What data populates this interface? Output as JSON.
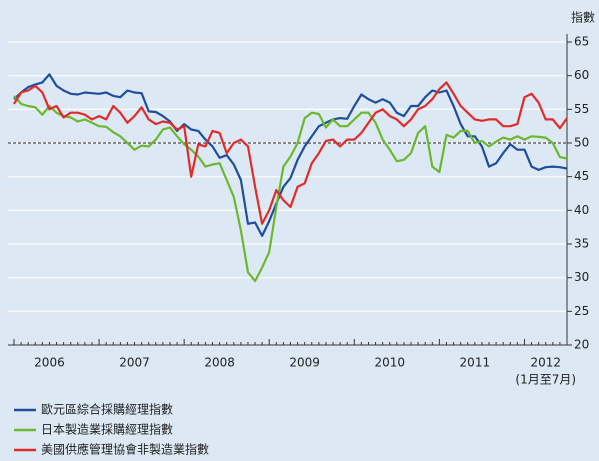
{
  "chart_data": {
    "type": "line",
    "ylabel": "指數",
    "annotation": "(1月至7月)",
    "categories": [
      null,
      null,
      null,
      null,
      null,
      "2006",
      null,
      null,
      null,
      null,
      null,
      null,
      null,
      null,
      null,
      null,
      null,
      "2007",
      null,
      null,
      null,
      null,
      null,
      null,
      null,
      null,
      null,
      null,
      null,
      "2008",
      null,
      null,
      null,
      null,
      null,
      null,
      null,
      null,
      null,
      null,
      null,
      "2009",
      null,
      null,
      null,
      null,
      null,
      null,
      null,
      null,
      null,
      null,
      null,
      "2010",
      null,
      null,
      null,
      null,
      null,
      null,
      null,
      null,
      null,
      null,
      null,
      "2011",
      null,
      null,
      null,
      null,
      null,
      null,
      null,
      null,
      null,
      "2012",
      null,
      null,
      null
    ],
    "series": [
      {
        "name": "歐元區綜合採購經理指數",
        "color": "#1f4e9a",
        "values": [
          56.5,
          57.5,
          58.3,
          58.7,
          59,
          60.2,
          58.5,
          57.8,
          57.3,
          57.2,
          57.5,
          57.4,
          57.3,
          57.5,
          57,
          56.8,
          57.8,
          57.5,
          57.4,
          54.7,
          54.6,
          54,
          53.2,
          51.8,
          52.8,
          52,
          51.8,
          50.5,
          49.5,
          47.8,
          48.2,
          46.8,
          44.5,
          38,
          38.2,
          36.2,
          38.4,
          41,
          43.5,
          44.8,
          47.5,
          49.5,
          51,
          52.5,
          53,
          53.5,
          53.7,
          53.6,
          55.5,
          57.2,
          56.5,
          56,
          56.5,
          56,
          54.5,
          54,
          55.5,
          55.5,
          56.8,
          57.8,
          57.5,
          57.8,
          55.5,
          52.8,
          51,
          51,
          49.5,
          46.5,
          47,
          48.5,
          49.8,
          49,
          49,
          46.5,
          46,
          46.4,
          46.5,
          46.4,
          46.2
        ]
      },
      {
        "name": "日本製造業採購經理指數",
        "color": "#6bb82f",
        "values": [
          57,
          55.8,
          55.5,
          55.3,
          54.2,
          55.5,
          54.5,
          54,
          53.8,
          53.2,
          53.5,
          53,
          52.5,
          52.4,
          51.6,
          51,
          50,
          49,
          49.6,
          49.5,
          50.5,
          52,
          52.3,
          51,
          49.8,
          49,
          48,
          46.5,
          46.8,
          47,
          44.5,
          42,
          37,
          30.8,
          29.5,
          31.5,
          33.8,
          40.5,
          46.5,
          48,
          50,
          53.7,
          54.5,
          54.3,
          52.3,
          53.5,
          52.5,
          52.5,
          53.5,
          54.5,
          54.5,
          53,
          50.5,
          49,
          47.3,
          47.5,
          48.5,
          51.5,
          52.5,
          46.5,
          45.7,
          51.2,
          50.8,
          51.8,
          51.8,
          50,
          50.3,
          49.5,
          50.2,
          50.8,
          50.5,
          51,
          50.5,
          51,
          50.9,
          50.8,
          50,
          47.9,
          47.7
        ]
      },
      {
        "name": "美國供應管理協會非製造業指數",
        "color": "#e02b2b",
        "values": [
          55.8,
          57.5,
          57.8,
          58.5,
          57.5,
          55,
          55.5,
          53.8,
          54.5,
          54.5,
          54.2,
          53.5,
          54,
          53.5,
          55.5,
          54.5,
          53,
          54,
          55.3,
          53.5,
          52.8,
          53.2,
          53,
          52,
          52.5,
          45,
          49.8,
          49.5,
          51.8,
          51.5,
          48.5,
          50,
          50.5,
          49.5,
          43.5,
          38,
          40,
          43,
          41.5,
          40.5,
          43.5,
          44,
          47,
          48.5,
          50.3,
          50.5,
          49.5,
          50.5,
          50.5,
          51.5,
          53,
          54.5,
          55,
          54,
          53.5,
          52.5,
          53.5,
          55,
          55.5,
          56.5,
          58,
          59,
          57.3,
          55.5,
          54.5,
          53.5,
          53.3,
          53.5,
          53.5,
          52.5,
          52.5,
          52.8,
          56.8,
          57.3,
          56,
          53.5,
          53.5,
          52.2,
          53.7
        ]
      }
    ],
    "ylim": [
      20,
      65
    ],
    "yticks": [
      20,
      25,
      30,
      35,
      40,
      45,
      50,
      55,
      60,
      65
    ],
    "reference_line": 50,
    "grid": true,
    "background": "#dce9f4"
  }
}
